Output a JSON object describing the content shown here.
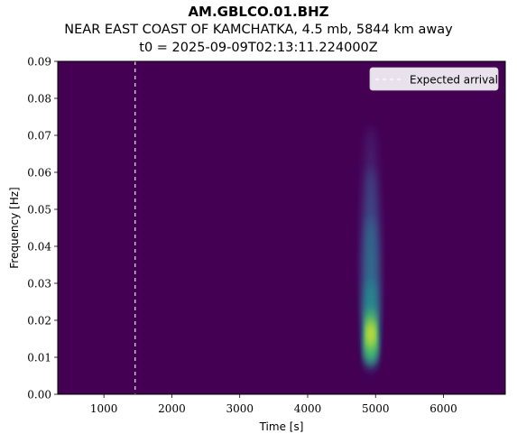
{
  "header": {
    "station": "AM.GBLCO.01.BHZ",
    "event": "NEAR EAST COAST OF KAMCHATKA, 4.5 mb, 5844 km away",
    "origin_time": "t0 = 2025-09-09T02:13:11.224000Z"
  },
  "colors": {
    "background": "#440154",
    "dashed_line": "#ffffff",
    "legend_bg": "#f2eef4",
    "colormap": "viridis"
  },
  "chart_data": {
    "type": "heatmap",
    "title": "AM.GBLCO.01.BHZ",
    "xlabel": "Time [s]",
    "ylabel": "Frequency [Hz]",
    "xlim": [
      320,
      6910
    ],
    "ylim": [
      0.0,
      0.09
    ],
    "xticks": [
      1000,
      2000,
      3000,
      4000,
      5000,
      6000
    ],
    "xtick_labels": [
      "1000",
      "2000",
      "3000",
      "4000",
      "5000",
      "6000"
    ],
    "yticks": [
      0.0,
      0.01,
      0.02,
      0.03,
      0.04,
      0.05,
      0.06,
      0.07,
      0.08,
      0.09
    ],
    "ytick_labels": [
      "0.00",
      "0.01",
      "0.02",
      "0.03",
      "0.04",
      "0.05",
      "0.06",
      "0.07",
      "0.08",
      "0.09"
    ],
    "expected_arrival_s": 1460,
    "legend": {
      "label": "Expected arrival",
      "placement": "upper right"
    },
    "energy_blob": {
      "peak_time_s": 4930,
      "peak_freq_hz": 0.016,
      "time_width_s": 110,
      "freq_extent_hz": [
        0.007,
        0.065
      ]
    },
    "grid": false
  }
}
